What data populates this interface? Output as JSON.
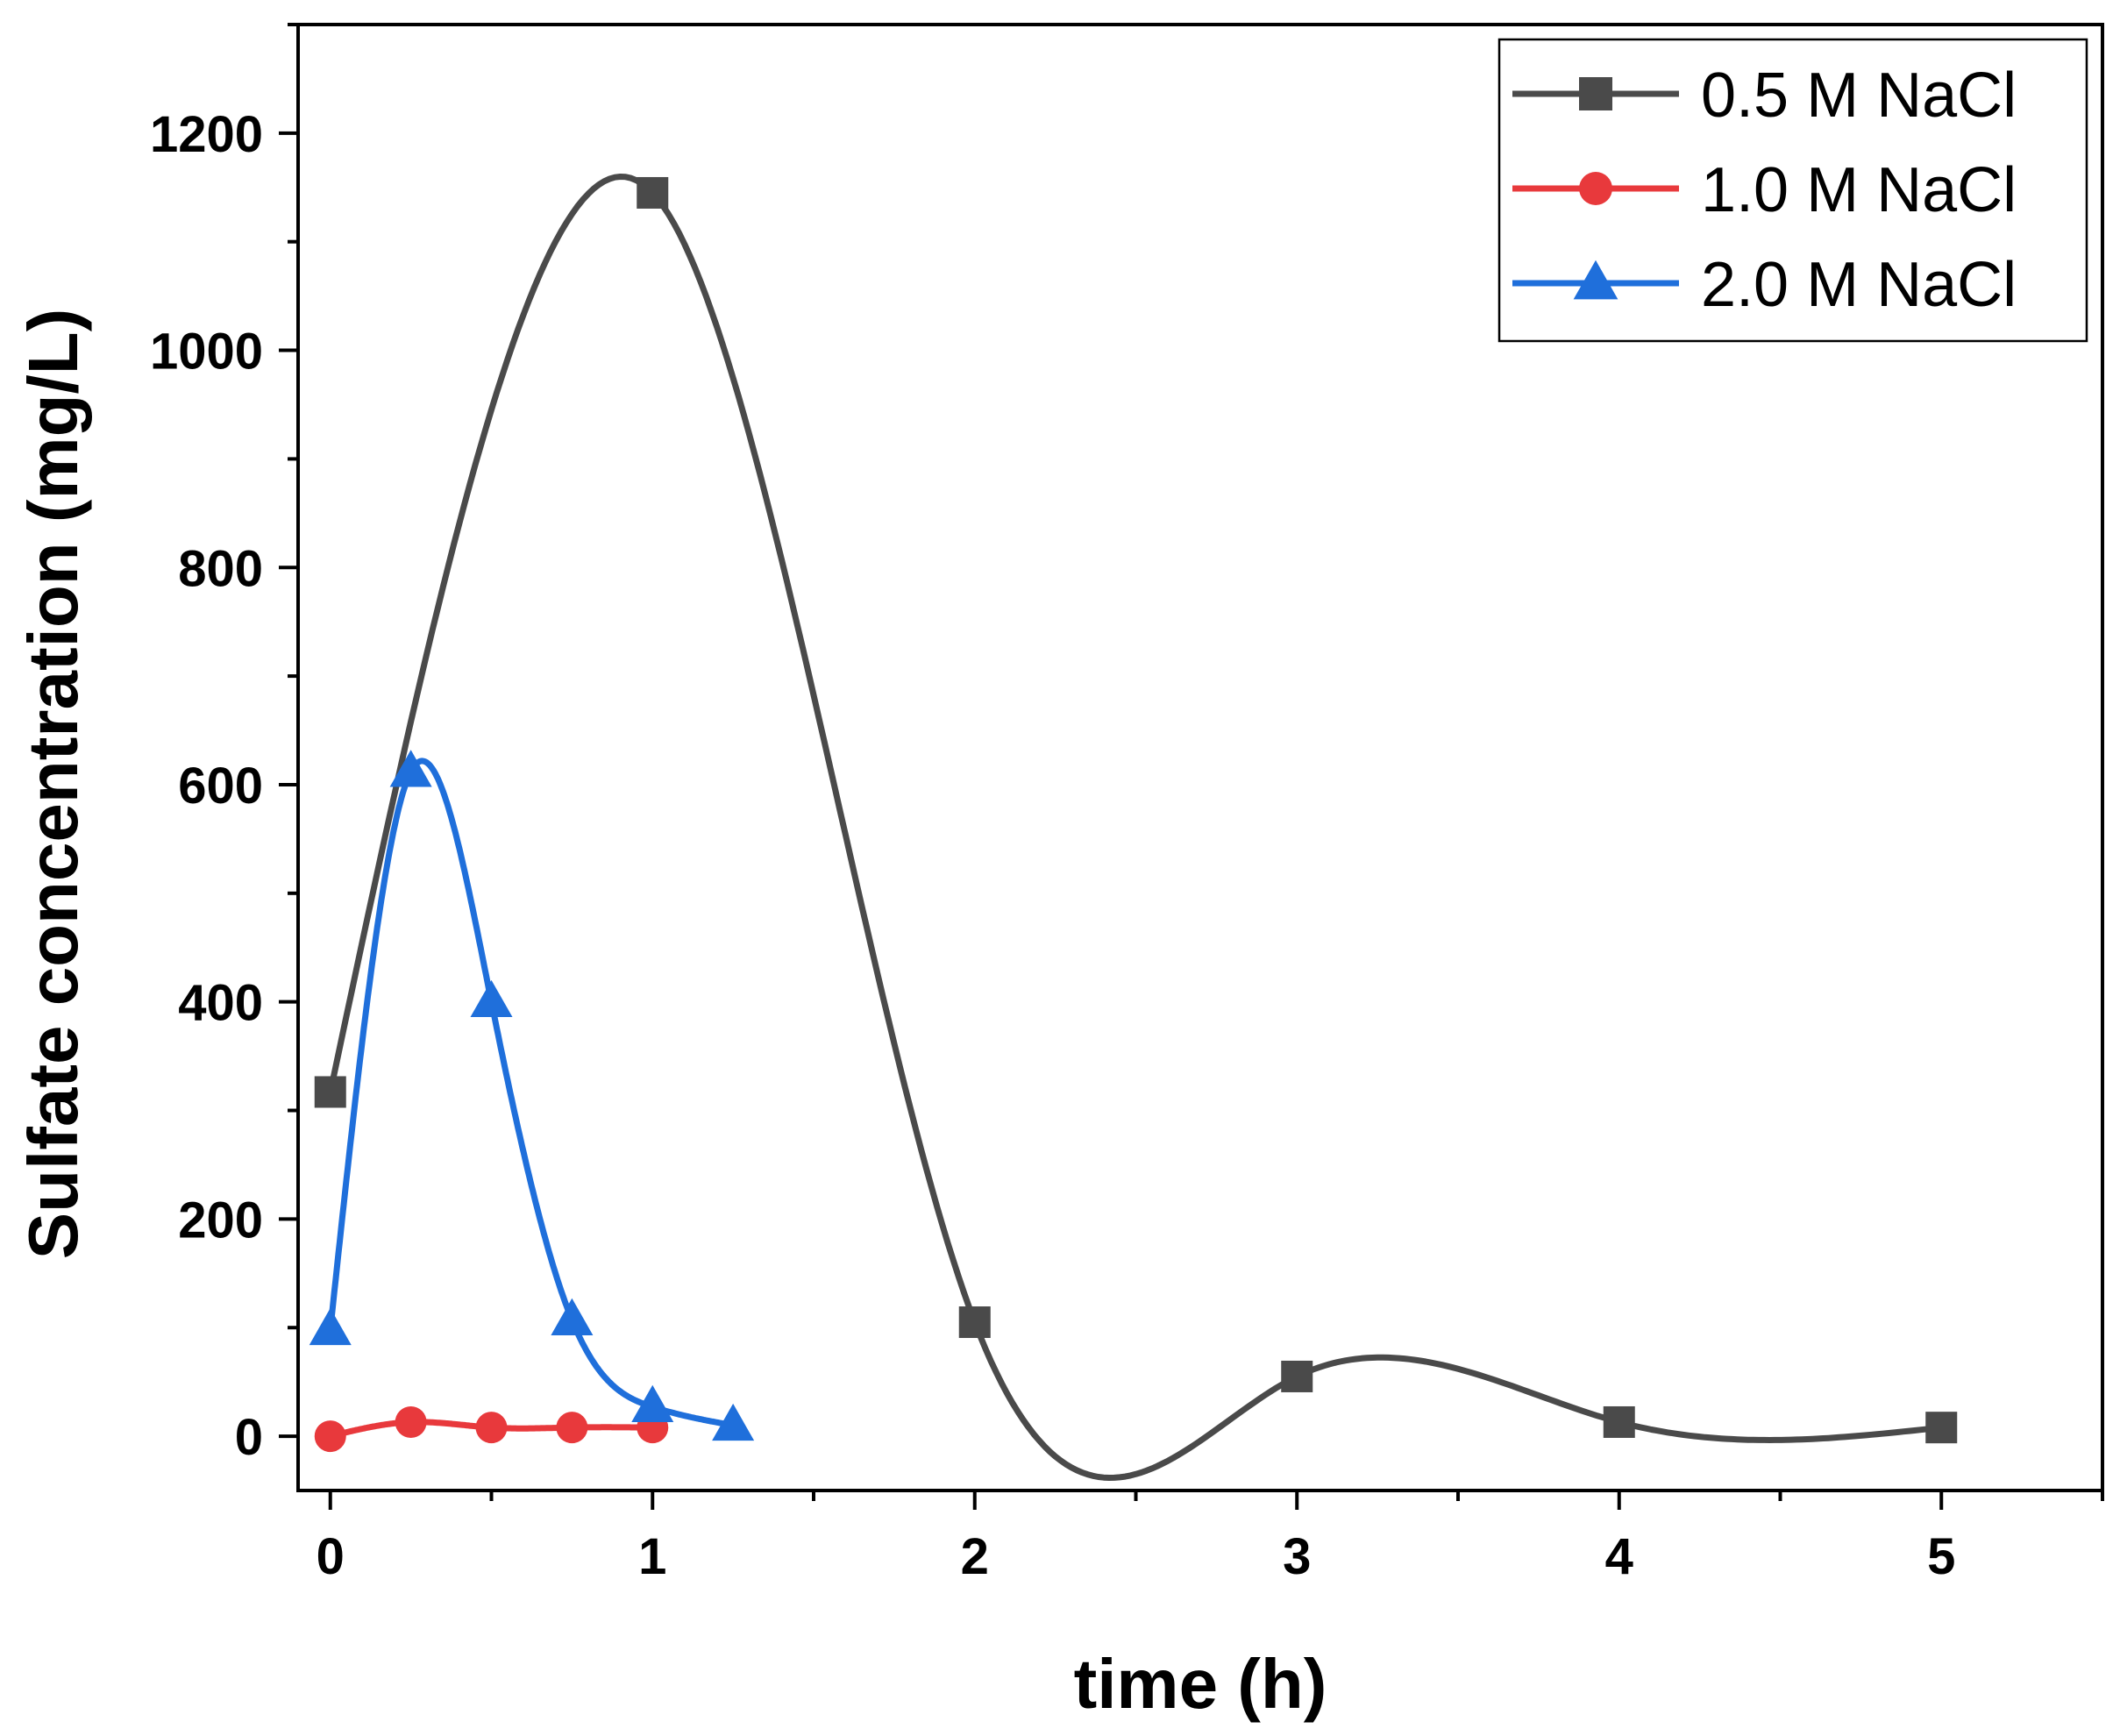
{
  "chart_data": {
    "type": "line",
    "title": "",
    "xlabel": "time (h)",
    "ylabel": "Sulfate concentration (mg/L)",
    "xlim": [
      -0.1,
      5.5
    ],
    "ylim": [
      -50,
      1300
    ],
    "xticks": [
      0,
      1,
      2,
      3,
      4,
      5
    ],
    "yticks": [
      0,
      200,
      400,
      600,
      800,
      1000,
      1200
    ],
    "grid": false,
    "legend_position": "top-right",
    "series": [
      {
        "name": "0.5 M NaCl",
        "color": "#4a4a4a",
        "marker": "square",
        "x": [
          0,
          1,
          2,
          3,
          4,
          5
        ],
        "y": [
          317,
          1145,
          105,
          55,
          13,
          8
        ]
      },
      {
        "name": "1.0 M NaCl",
        "color": "#e8393c",
        "marker": "circle",
        "x": [
          0,
          0.25,
          0.5,
          0.75,
          1
        ],
        "y": [
          0,
          13,
          8,
          8,
          8
        ]
      },
      {
        "name": "2.0 M NaCl",
        "color": "#1f6fdb",
        "marker": "triangle",
        "x": [
          0,
          0.25,
          0.5,
          0.75,
          1,
          1.25
        ],
        "y": [
          98,
          612,
          400,
          107,
          27,
          10
        ]
      }
    ]
  }
}
